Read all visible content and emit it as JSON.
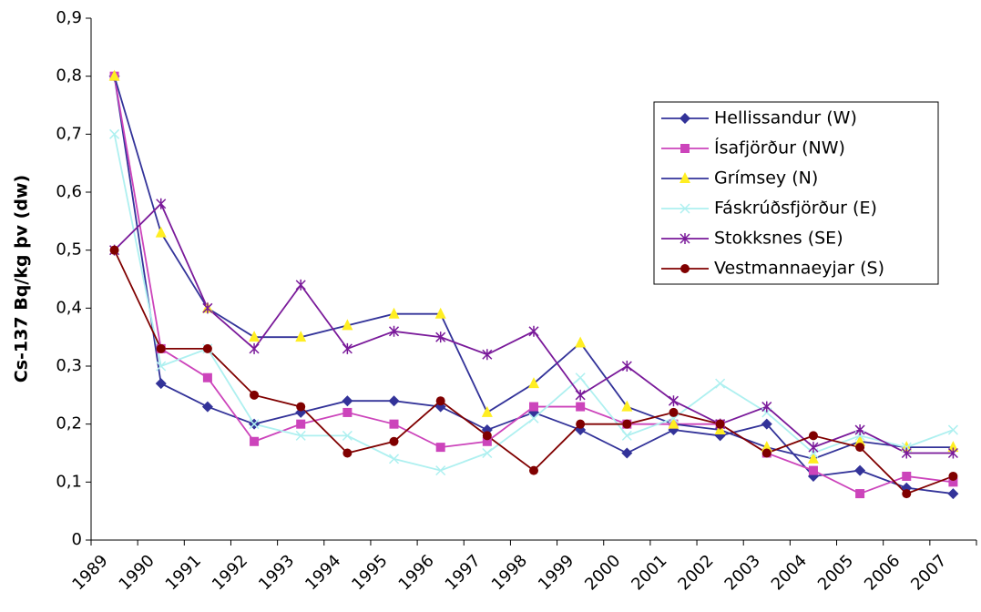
{
  "chart_data": {
    "type": "line",
    "y_label": "Cs-137 Bq/kg þv (dw)",
    "categories": [
      "1989",
      "1990",
      "1991",
      "1992",
      "1993",
      "1994",
      "1995",
      "1996",
      "1997",
      "1998",
      "1999",
      "2000",
      "2001",
      "2002",
      "2003",
      "2004",
      "2005",
      "2006",
      "2007"
    ],
    "ylim": [
      0,
      0.9
    ],
    "yticks": [
      0,
      {
        "value": 0.1,
        "label": "0,1"
      },
      {
        "value": 0.2,
        "label": "0,2"
      },
      {
        "value": 0.3,
        "label": "0,3"
      },
      {
        "value": 0.4,
        "label": "0,4"
      },
      {
        "value": 0.5,
        "label": "0,5"
      },
      {
        "value": 0.6,
        "label": "0,6"
      },
      {
        "value": 0.7,
        "label": "0,7"
      },
      {
        "value": 0.8,
        "label": "0,8"
      },
      {
        "value": 0.9,
        "label": "0,9"
      }
    ],
    "series": [
      {
        "name": "Hellissandur (W)",
        "color": "#333399",
        "marker": "diamond",
        "marker_color": "#333399",
        "values": [
          0.8,
          0.27,
          0.23,
          0.2,
          0.22,
          0.24,
          0.24,
          0.23,
          0.19,
          0.22,
          0.19,
          0.15,
          0.19,
          0.18,
          0.2,
          0.11,
          0.12,
          0.09,
          0.08
        ]
      },
      {
        "name": "Ísafjörður (NW)",
        "color": "#cc44bb",
        "marker": "square",
        "marker_color": "#cc44bb",
        "values": [
          0.8,
          0.33,
          0.28,
          0.17,
          0.2,
          0.22,
          0.2,
          0.16,
          0.17,
          0.23,
          0.23,
          0.2,
          0.2,
          0.2,
          0.15,
          0.12,
          0.08,
          0.11,
          0.1
        ]
      },
      {
        "name": "Grímsey (N)",
        "color": "#333399",
        "marker": "triangle",
        "marker_color": "#ffee22",
        "values": [
          0.8,
          0.53,
          0.4,
          0.35,
          0.35,
          0.37,
          0.39,
          0.39,
          0.22,
          0.27,
          0.34,
          0.23,
          0.2,
          0.19,
          0.16,
          0.14,
          0.17,
          0.16,
          0.16
        ]
      },
      {
        "name": "Fáskrúðsfjörður (E)",
        "color": "#aef0f0",
        "marker": "cross",
        "marker_color": "#aef0f0",
        "values": [
          0.7,
          0.3,
          0.33,
          0.2,
          0.18,
          0.18,
          0.14,
          0.12,
          0.15,
          0.21,
          0.28,
          0.18,
          0.21,
          0.27,
          0.22,
          0.15,
          0.18,
          0.16,
          0.19
        ]
      },
      {
        "name": "Stokksnes (SE)",
        "color": "#7a1a9a",
        "marker": "star",
        "marker_color": "#7a1a9a",
        "values": [
          0.5,
          0.58,
          0.4,
          0.33,
          0.44,
          0.33,
          0.36,
          0.35,
          0.32,
          0.36,
          0.25,
          0.3,
          0.24,
          0.2,
          0.23,
          0.16,
          0.19,
          0.15,
          0.15
        ]
      },
      {
        "name": "Vestmannaeyjar (S)",
        "color": "#800000",
        "marker": "circle",
        "marker_color": "#800000",
        "values": [
          0.5,
          0.33,
          0.33,
          0.25,
          0.23,
          0.15,
          0.17,
          0.24,
          0.18,
          0.12,
          0.2,
          0.2,
          0.22,
          0.2,
          0.15,
          0.18,
          0.16,
          0.08,
          0.11
        ]
      }
    ],
    "legend": "upper right"
  }
}
